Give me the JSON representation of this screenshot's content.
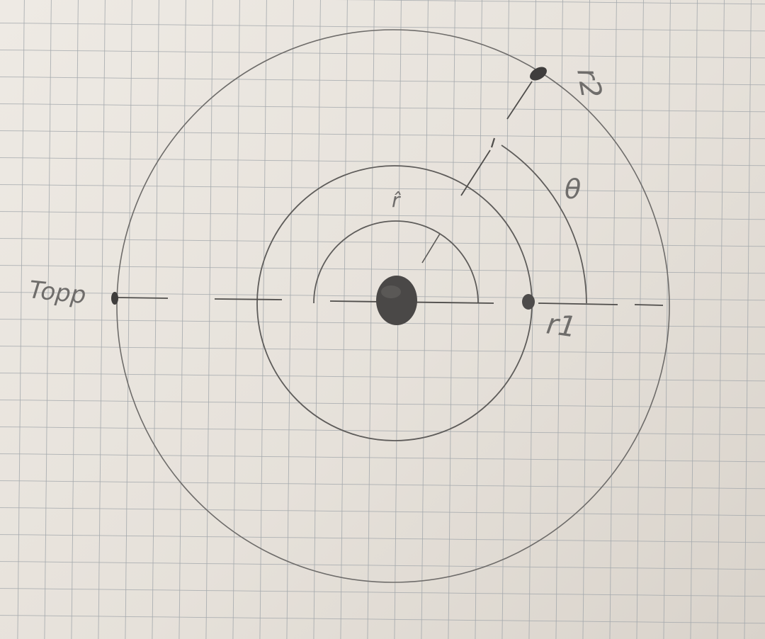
{
  "diagram": {
    "labels": {
      "topp": "Topp",
      "r1": "r1",
      "r2": "r2",
      "theta": "θ",
      "r_hat": "r̂"
    },
    "colors": {
      "paper": "#e9e4dd",
      "grid": "#9fa4a8",
      "pencil": "#5c5a58",
      "dot": "#4a4847"
    }
  }
}
